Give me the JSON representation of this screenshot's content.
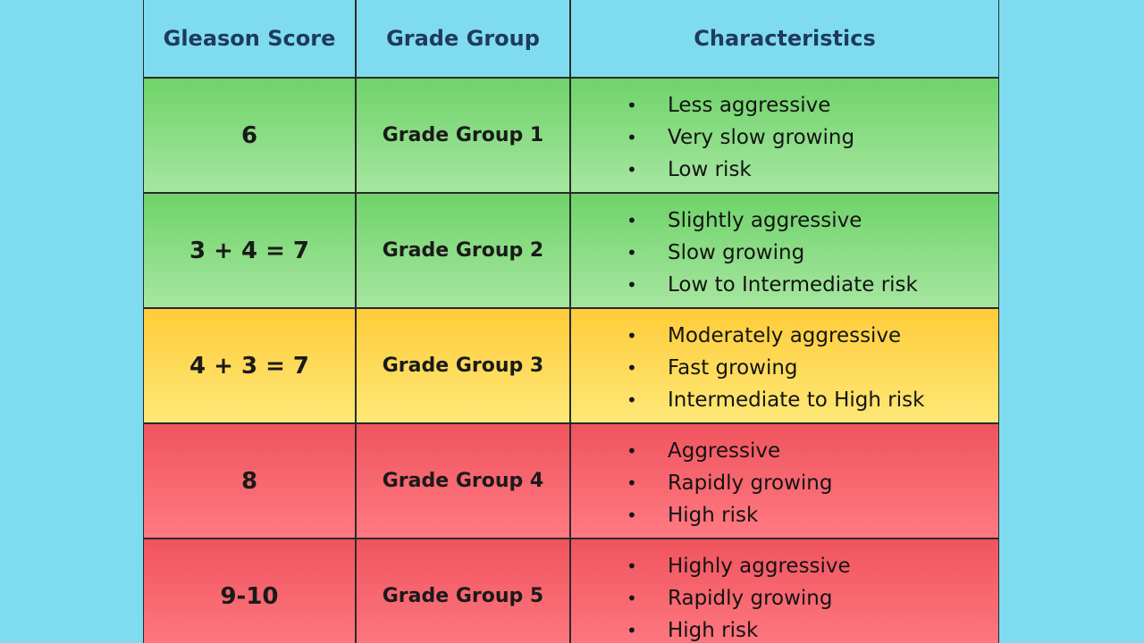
{
  "header": {
    "col1": "Gleason Score",
    "col2": "Grade Group",
    "col3": "Characteristics"
  },
  "rows": [
    {
      "score": "6",
      "group": "Grade Group 1",
      "characteristics": [
        "Less aggressive",
        "Very slow growing",
        "Low risk"
      ]
    },
    {
      "score": "3 + 4 = 7",
      "group": "Grade Group 2",
      "characteristics": [
        "Slightly aggressive",
        "Slow growing",
        "Low to Intermediate risk"
      ]
    },
    {
      "score": "4 + 3 = 7",
      "group": "Grade Group 3",
      "characteristics": [
        "Moderately aggressive",
        "Fast growing",
        "Intermediate to High risk"
      ]
    },
    {
      "score": "8",
      "group": "Grade Group 4",
      "characteristics": [
        "Aggressive",
        "Rapidly growing",
        "High risk"
      ]
    },
    {
      "score": "9-10",
      "group": "Grade Group 5",
      "characteristics": [
        "Highly aggressive",
        "Rapidly growing",
        "High risk"
      ]
    }
  ],
  "colors": {
    "background": "#7fdcf0",
    "header_text": "#1f3a5c",
    "low_risk": "#6fd36a",
    "intermediate_risk": "#ffcc3a",
    "high_risk": "#f0545e"
  }
}
